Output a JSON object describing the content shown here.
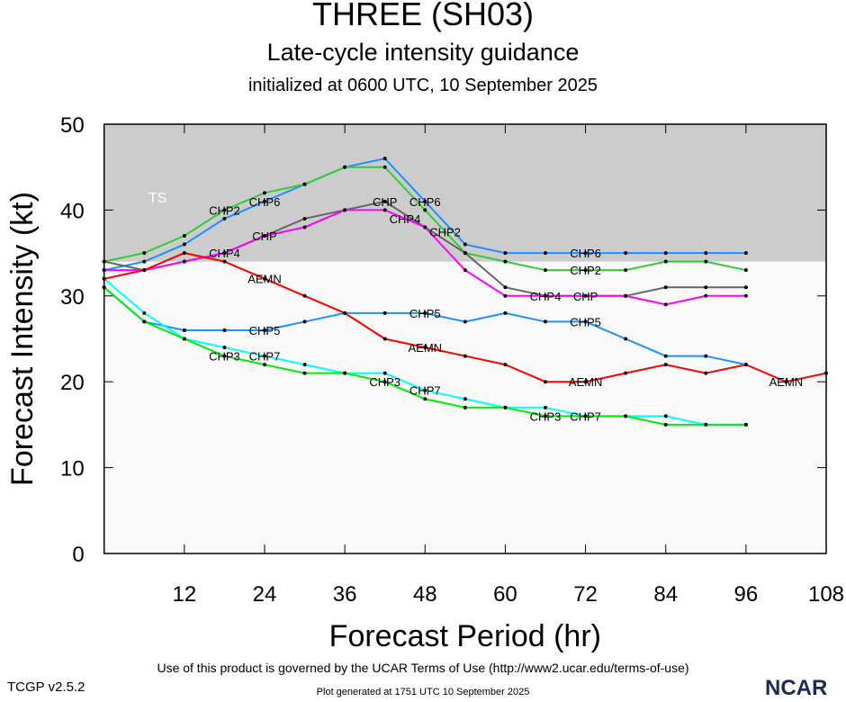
{
  "title": "THREE (SH03)",
  "subtitle": "Late-cycle intensity guidance",
  "initialized": "initialized at 0600 UTC, 10 September 2025",
  "footer_terms": "Use of this product is governed by the UCAR Terms of Use (http://www2.ucar.edu/terms-of-use)",
  "footer_generated": "Plot generated at 1751 UTC   10 September 2025",
  "version": "TCGP v2.5.2",
  "logo": "NCAR",
  "chart_data": {
    "type": "line",
    "xlabel": "Forecast Period (hr)",
    "ylabel": "Forecast Intensity (kt)",
    "xlim": [
      0,
      108
    ],
    "ylim": [
      0,
      50
    ],
    "xticks": [
      12,
      24,
      36,
      48,
      60,
      72,
      84,
      96,
      108
    ],
    "yticks": [
      0,
      10,
      20,
      30,
      40,
      50
    ],
    "band": {
      "label": "TS",
      "from": 34,
      "to": 50,
      "color": "#cccccc"
    },
    "series": [
      {
        "name": "CHP6",
        "color": "#1e90ff",
        "label_at": [
          24,
          48,
          72
        ],
        "x": [
          0,
          6,
          12,
          18,
          24,
          30,
          36,
          42,
          48,
          54,
          60,
          66,
          72,
          78,
          84,
          90,
          96
        ],
        "y": [
          33,
          34,
          36,
          39,
          41,
          43,
          45,
          46,
          41,
          36,
          35,
          35,
          35,
          35,
          35,
          35,
          35
        ]
      },
      {
        "name": "CHP2",
        "color": "#33cc33",
        "label_at": [
          24,
          48,
          72
        ],
        "x": [
          0,
          6,
          12,
          18,
          24,
          30,
          36,
          42,
          48,
          54,
          60,
          66,
          72,
          78,
          84,
          90,
          96
        ],
        "y": [
          34,
          35,
          37,
          40,
          42,
          43,
          45,
          45,
          40,
          35,
          34,
          33,
          33,
          33,
          34,
          34,
          33
        ]
      },
      {
        "name": "CHP",
        "color": "#666666",
        "label_at": [
          24,
          48,
          72
        ],
        "x": [
          0,
          6,
          12,
          18,
          24,
          30,
          36,
          42,
          48,
          54,
          60,
          66,
          72,
          78,
          84,
          90,
          96
        ],
        "y": [
          34,
          33,
          34,
          35,
          37,
          39,
          40,
          41,
          38,
          35,
          31,
          30,
          30,
          30,
          31,
          31,
          31
        ]
      },
      {
        "name": "CHP4",
        "color": "#ff00ff",
        "label_at": [
          24,
          48,
          72
        ],
        "x": [
          0,
          6,
          12,
          18,
          24,
          30,
          36,
          42,
          48,
          54,
          60,
          66,
          72,
          78,
          84,
          90,
          96
        ],
        "y": [
          33,
          33,
          34,
          35,
          37,
          38,
          40,
          40,
          38,
          33,
          30,
          30,
          30,
          30,
          29,
          30,
          30
        ]
      },
      {
        "name": "AEMN",
        "color": "#ff0000",
        "label_at": [
          24,
          48,
          72,
          102
        ],
        "x": [
          0,
          6,
          12,
          18,
          24,
          30,
          36,
          42,
          48,
          54,
          60,
          66,
          72,
          78,
          84,
          90,
          96,
          102,
          108
        ],
        "y": [
          32,
          33,
          35,
          34,
          32,
          30,
          28,
          25,
          24,
          23,
          22,
          20,
          20,
          21,
          22,
          21,
          22,
          20,
          21
        ]
      },
      {
        "name": "CHP5",
        "color": "#1e90ff",
        "label_at": [
          24,
          48,
          72
        ],
        "x": [
          0,
          6,
          12,
          18,
          24,
          30,
          36,
          42,
          48,
          54,
          60,
          66,
          72,
          78,
          84,
          90,
          96
        ],
        "y": [
          31,
          27,
          26,
          26,
          26,
          27,
          28,
          28,
          28,
          27,
          28,
          27,
          27,
          25,
          23,
          23,
          22
        ]
      },
      {
        "name": "CHP7",
        "color": "#00ffff",
        "label_at": [
          24,
          48,
          72
        ],
        "x": [
          0,
          6,
          12,
          18,
          24,
          30,
          36,
          42,
          48,
          54,
          60,
          66,
          72,
          78,
          84,
          90,
          96
        ],
        "y": [
          32,
          28,
          25,
          24,
          23,
          22,
          21,
          21,
          19,
          18,
          17,
          17,
          16,
          16,
          16,
          15,
          15
        ]
      },
      {
        "name": "CHP3",
        "color": "#00ee00",
        "label_at": [
          24,
          48,
          72
        ],
        "x": [
          0,
          6,
          12,
          18,
          24,
          30,
          36,
          42,
          48,
          54,
          60,
          66,
          72,
          78,
          84,
          90,
          96
        ],
        "y": [
          31,
          27,
          25,
          23,
          22,
          21,
          21,
          20,
          18,
          17,
          17,
          16,
          16,
          16,
          15,
          15,
          15
        ]
      }
    ]
  }
}
